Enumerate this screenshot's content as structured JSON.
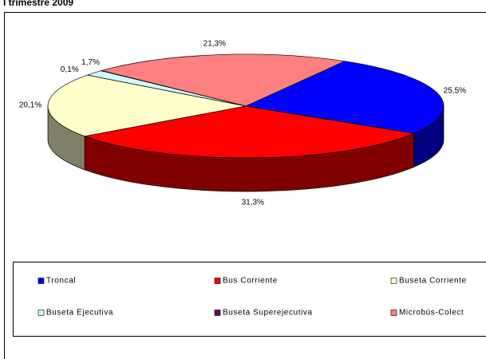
{
  "chart_data": {
    "type": "pie3d",
    "title": "I trimestre 2009",
    "categories": [
      "Troncal",
      "Bus Corriente",
      "Buseta Corriente",
      "Buseta Ejecutiva",
      "Buseta Superejecutiva",
      "Microbús-Colect"
    ],
    "values": [
      25.5,
      31.3,
      20.1,
      1.7,
      0.1,
      21.3
    ],
    "value_labels": [
      "25,5%",
      "31,3%",
      "20,1%",
      "1,7%",
      "0,1%",
      "21,3%"
    ],
    "colors": [
      "#0000ff",
      "#ff0000",
      "#ffffcc",
      "#ccffff",
      "#660066",
      "#ff8080"
    ],
    "legend": "bottom"
  }
}
